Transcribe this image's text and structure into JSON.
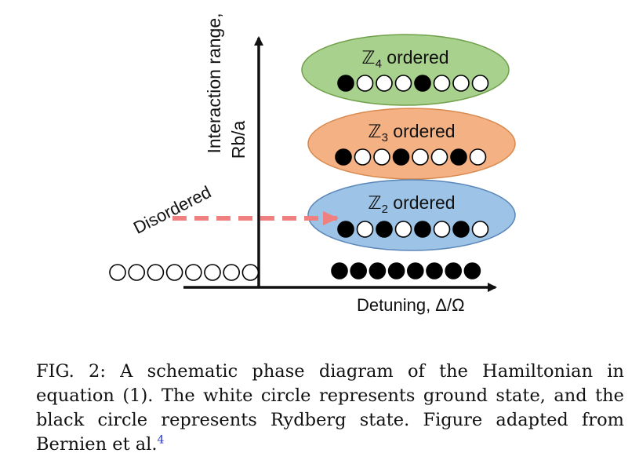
{
  "figure": {
    "y_axis_label_line1": "Interaction range,",
    "y_axis_label_line2": "Rb/a",
    "x_axis_label": "Detuning, Δ/Ω",
    "disordered_label": "Disordered",
    "phases": [
      {
        "symbol": "ℤ",
        "sub": "4",
        "suffix": " ordered",
        "fill": "#a9d18e",
        "stroke": "#70a04a",
        "pattern": [
          1,
          0,
          0,
          0,
          1,
          0,
          0,
          0
        ]
      },
      {
        "symbol": "ℤ",
        "sub": "3",
        "suffix": " ordered",
        "fill": "#f4b183",
        "stroke": "#d88a50",
        "pattern": [
          1,
          0,
          0,
          1,
          0,
          0,
          1,
          0
        ]
      },
      {
        "symbol": "ℤ",
        "sub": "2",
        "suffix": " ordered",
        "fill": "#9dc3e6",
        "stroke": "#5b86b8",
        "pattern": [
          1,
          0,
          1,
          0,
          1,
          0,
          1,
          0
        ]
      }
    ],
    "ground_chain": [
      0,
      0,
      0,
      0,
      0,
      0,
      0,
      0
    ],
    "rydberg_chain": [
      1,
      1,
      1,
      1,
      1,
      1,
      1,
      1
    ],
    "arrow_color": "#f08080"
  },
  "caption": {
    "text": "FIG. 2: A schematic phase diagram of the Hamiltonian in equation (1). The white circle represents ground state, and the black circle represents Rydberg state. Figure adapted from Bernien et al.",
    "ref": "4"
  }
}
